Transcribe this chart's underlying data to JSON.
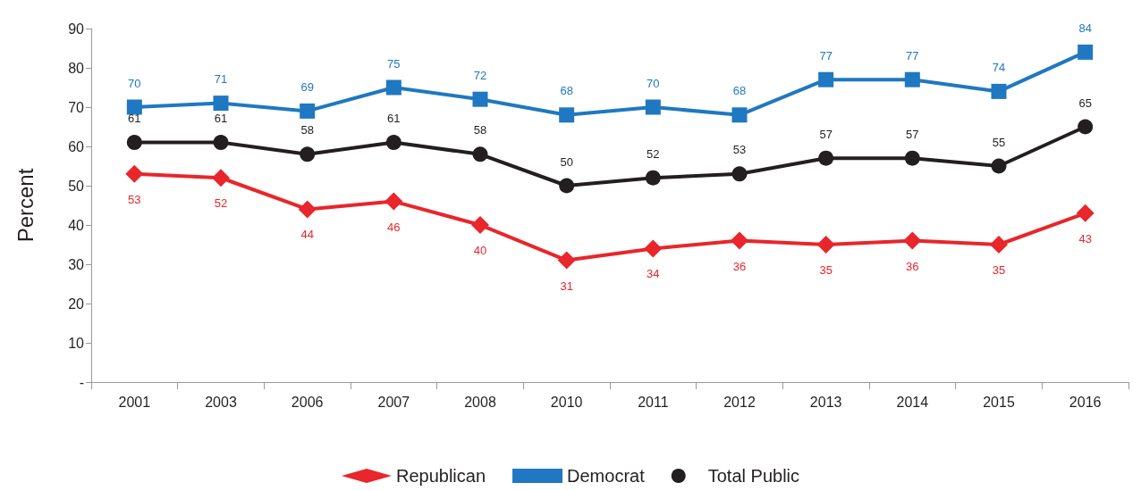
{
  "chart_data": {
    "type": "line",
    "ylabel": "Percent",
    "categories": [
      "2001",
      "2003",
      "2006",
      "2007",
      "2008",
      "2010",
      "2011",
      "2012",
      "2013",
      "2014",
      "2015",
      "2016"
    ],
    "series": [
      {
        "name": "Republican",
        "color": "#e8262b",
        "marker": "diamond",
        "values": [
          53,
          52,
          44,
          46,
          40,
          31,
          34,
          36,
          35,
          36,
          35,
          43
        ]
      },
      {
        "name": "Democrat",
        "color": "#1f78c1",
        "marker": "square",
        "values": [
          70,
          71,
          69,
          75,
          72,
          68,
          70,
          68,
          77,
          77,
          74,
          84
        ]
      },
      {
        "name": "Total Public",
        "color": "#231f20",
        "marker": "circle",
        "values": [
          61,
          61,
          58,
          61,
          58,
          50,
          52,
          53,
          57,
          57,
          55,
          65
        ]
      }
    ],
    "ylim": [
      0,
      90
    ],
    "yticks": [
      {
        "value": 0,
        "label": "-"
      },
      10,
      20,
      30,
      40,
      50,
      60,
      70,
      80,
      90
    ],
    "grid": false,
    "legend": "bottom",
    "data_labels": true,
    "line_style": "solid"
  }
}
